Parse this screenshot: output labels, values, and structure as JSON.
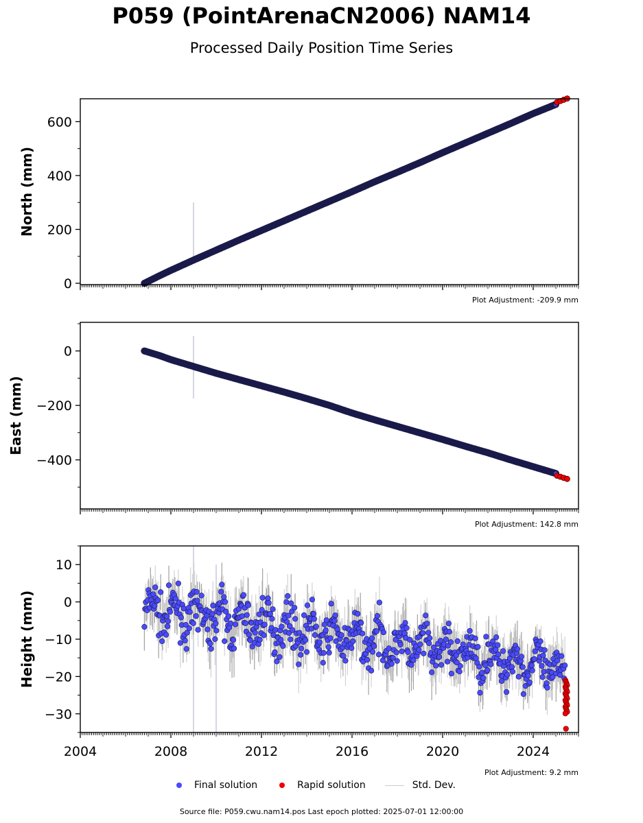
{
  "title": "P059 (PointArenaCN2006) NAM14",
  "subtitle": "Processed Daily Position Time Series",
  "footer": "Source file: P059.cwu.nam14.pos  Last epoch plotted: 2025-07-01 12:00:00",
  "colors": {
    "final": "#4a4aff",
    "final_edge": "#1a1a4a",
    "rapid": "#ee0000",
    "std": "#c8c8c8"
  },
  "legend": {
    "final": "Final solution",
    "rapid": "Rapid solution",
    "std": "Std. Dev."
  },
  "chart_data": [
    {
      "type": "scatter",
      "ylabel": "North (mm)",
      "xlim": [
        2004,
        2026
      ],
      "ylim": [
        -5,
        685
      ],
      "yticks": [
        0,
        200,
        400,
        600
      ],
      "xticks": [
        2004,
        2008,
        2012,
        2016,
        2020,
        2024
      ],
      "adjustment": "Plot Adjustment: -209.9 mm",
      "series": [
        {
          "name": "Final solution",
          "x": [
            2006.83,
            2007.5,
            2008,
            2009,
            2010,
            2011,
            2012,
            2013,
            2014,
            2015,
            2016,
            2017,
            2018,
            2019,
            2020,
            2021,
            2022,
            2023,
            2024,
            2025.0
          ],
          "y": [
            0,
            28,
            48,
            86,
            123,
            160,
            196,
            232,
            268,
            304,
            340,
            377,
            412,
            448,
            485,
            521,
            557,
            593,
            630,
            664
          ]
        },
        {
          "name": "Rapid solution",
          "x": [
            2025.05,
            2025.5
          ],
          "y": [
            672,
            686
          ]
        }
      ],
      "outliers": [
        {
          "x": 2009.0,
          "lo": 90,
          "hi": 300
        }
      ]
    },
    {
      "type": "scatter",
      "ylabel": "East (mm)",
      "xlim": [
        2004,
        2026
      ],
      "ylim": [
        -580,
        105
      ],
      "yticks": [
        -400,
        -200,
        0
      ],
      "xticks": [
        2004,
        2008,
        2012,
        2016,
        2020,
        2024
      ],
      "adjustment": "Plot Adjustment: 142.8 mm",
      "series": [
        {
          "name": "Final solution",
          "x": [
            2006.83,
            2007.5,
            2008,
            2009,
            2010,
            2011,
            2012,
            2013,
            2014,
            2015,
            2016,
            2017,
            2018,
            2019,
            2020,
            2021,
            2022,
            2023,
            2024,
            2025.0
          ],
          "y": [
            0,
            -17,
            -32,
            -57,
            -82,
            -105,
            -128,
            -151,
            -175,
            -200,
            -228,
            -253,
            -277,
            -301,
            -325,
            -350,
            -374,
            -400,
            -425,
            -450
          ]
        },
        {
          "name": "Rapid solution",
          "x": [
            2025.05,
            2025.5
          ],
          "y": [
            -458,
            -470
          ]
        }
      ],
      "outliers": [
        {
          "x": 2009.0,
          "lo": -175,
          "hi": 55
        }
      ]
    },
    {
      "type": "scatter",
      "ylabel": "Height (mm)",
      "xlim": [
        2004,
        2026
      ],
      "ylim": [
        -35,
        15
      ],
      "yticks": [
        -30,
        -20,
        -10,
        0,
        10
      ],
      "xticks": [
        2004,
        2008,
        2012,
        2016,
        2020,
        2024
      ],
      "xticklabels": [
        "2004",
        "2008",
        "2012",
        "2016",
        "2020",
        "2024"
      ],
      "adjustment": "Plot Adjustment: 9.2 mm",
      "trend": {
        "x": [
          2006.83,
          2008,
          2012,
          2016,
          2020,
          2024,
          2025.4
        ],
        "y": [
          -2,
          -3,
          -6,
          -10,
          -13,
          -17,
          -19
        ]
      },
      "noise_sd": 5.0,
      "series": [
        {
          "name": "Final solution",
          "x": [
            2006.83,
            2025.4
          ],
          "y": [
            -2,
            -19
          ]
        },
        {
          "name": "Rapid solution",
          "x": [
            2025.42,
            2025.5
          ],
          "y": [
            -21,
            -34
          ]
        }
      ],
      "outliers": [
        {
          "x": 2009.0,
          "lo": -35,
          "hi": 15
        },
        {
          "x": 2010.0,
          "lo": -35,
          "hi": 10
        }
      ]
    }
  ]
}
